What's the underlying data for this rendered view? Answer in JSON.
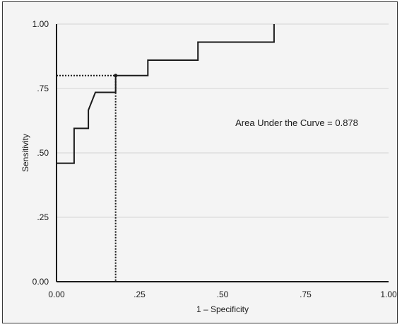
{
  "chart_data": {
    "type": "line",
    "xlabel": "1 – Specificity",
    "ylabel": "Sensitivity",
    "xlim": [
      0,
      1
    ],
    "ylim": [
      0,
      1
    ],
    "x_ticks": [
      "0.00",
      ".25",
      ".50",
      ".75",
      "1.00"
    ],
    "y_ticks": [
      "0.00",
      ".25",
      ".50",
      ".75",
      "1.00"
    ],
    "grid": "horizontal",
    "annotation": "Area Under the Curve = 0.878",
    "series": [
      {
        "x": [
          0.0,
          0.0,
          0.0,
          0.053,
          0.053,
          0.096,
          0.096,
          0.117,
          0.178,
          0.178,
          0.275,
          0.275,
          0.426,
          0.426,
          0.655,
          0.655
        ],
        "y": [
          0.64,
          0.0,
          0.46,
          0.46,
          0.595,
          0.595,
          0.666,
          0.735,
          0.735,
          0.8,
          0.8,
          0.86,
          0.86,
          0.93,
          0.93,
          1.0
        ]
      }
    ],
    "cutoff_point": {
      "x": 0.178,
      "y": 0.8
    }
  }
}
